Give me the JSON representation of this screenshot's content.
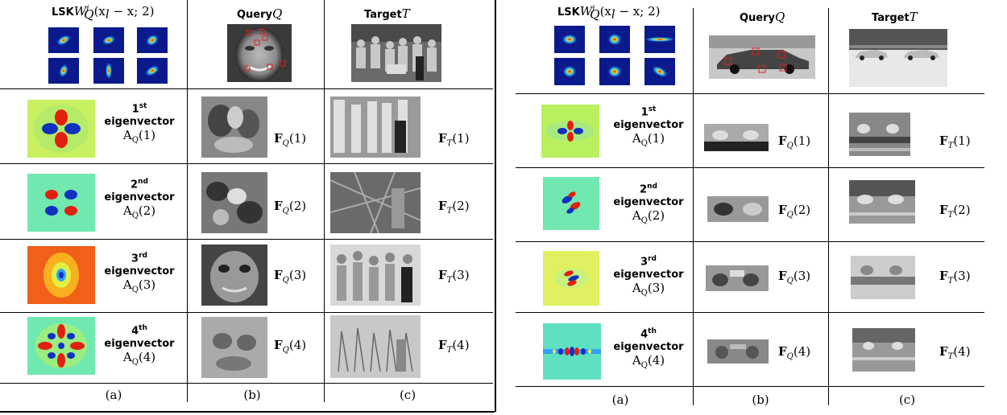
{
  "panels": [
    {
      "headers": {
        "lsk_prefix": "LSK",
        "lsk_math": "W",
        "lsk_sup": "j",
        "lsk_sub": "Q",
        "lsk_args": "(x",
        "lsk_args_sub": "l",
        "lsk_args_rest": " − x; 2)",
        "query": "Query",
        "query_sym": "Q",
        "target": "Target",
        "target_sym": "T"
      },
      "rows": [
        {
          "ord": "1",
          "ord_sup": "st",
          "word": "eigenvector",
          "a": "A",
          "a_sub": "Q",
          "a_arg": "(1)",
          "fq": "F",
          "fq_sub": "Q",
          "fq_arg": "(1)",
          "ft": "F",
          "ft_sub": "T",
          "ft_arg": "(1)"
        },
        {
          "ord": "2",
          "ord_sup": "nd",
          "word": "eigenvector",
          "a": "A",
          "a_sub": "Q",
          "a_arg": "(2)",
          "fq": "F",
          "fq_sub": "Q",
          "fq_arg": "(2)",
          "ft": "F",
          "ft_sub": "T",
          "ft_arg": "(2)"
        },
        {
          "ord": "3",
          "ord_sup": "rd",
          "word": "eigenvector",
          "a": "A",
          "a_sub": "Q",
          "a_arg": "(3)",
          "fq": "F",
          "fq_sub": "Q",
          "fq_arg": "(3)",
          "ft": "F",
          "ft_sub": "T",
          "ft_arg": "(3)"
        },
        {
          "ord": "4",
          "ord_sup": "th",
          "word": "eigenvector",
          "a": "A",
          "a_sub": "Q",
          "a_arg": "(4)",
          "fq": "F",
          "fq_sub": "Q",
          "fq_arg": "(4)",
          "ft": "F",
          "ft_sub": "T",
          "ft_arg": "(4)"
        }
      ],
      "captions": [
        "(a)",
        "(b)",
        "(c)"
      ]
    },
    {
      "headers": {
        "lsk_prefix": "LSK",
        "lsk_math": "W",
        "lsk_sup": "j",
        "lsk_sub": "Q",
        "lsk_args": "(x",
        "lsk_args_sub": "l",
        "lsk_args_rest": " − x; 2)",
        "query": "Query",
        "query_sym": "Q",
        "target": "Target",
        "target_sym": "T"
      },
      "rows": [
        {
          "ord": "1",
          "ord_sup": "st",
          "word": "eigenvector",
          "a": "A",
          "a_sub": "Q",
          "a_arg": "(1)",
          "fq": "F",
          "fq_sub": "Q",
          "fq_arg": "(1)",
          "ft": "F",
          "ft_sub": "T",
          "ft_arg": "(1)"
        },
        {
          "ord": "2",
          "ord_sup": "nd",
          "word": "eigenvector",
          "a": "A",
          "a_sub": "Q",
          "a_arg": "(2)",
          "fq": "F",
          "fq_sub": "Q",
          "fq_arg": "(2)",
          "ft": "F",
          "ft_sub": "T",
          "ft_arg": "(2)"
        },
        {
          "ord": "3",
          "ord_sup": "rd",
          "word": "eigenvector",
          "a": "A",
          "a_sub": "Q",
          "a_arg": "(3)",
          "fq": "F",
          "fq_sub": "Q",
          "fq_arg": "(3)",
          "ft": "F",
          "ft_sub": "T",
          "ft_arg": "(3)"
        },
        {
          "ord": "4",
          "ord_sup": "th",
          "word": "eigenvector",
          "a": "A",
          "a_sub": "Q",
          "a_arg": "(4)",
          "fq": "F",
          "fq_sub": "Q",
          "fq_arg": "(4)",
          "ft": "F",
          "ft_sub": "T",
          "ft_arg": "(4)"
        }
      ],
      "captions": [
        "(a)",
        "(b)",
        "(c)"
      ]
    }
  ],
  "colors": {
    "kernel_bg": "#0a1a8c",
    "eig_green": "#b8f060",
    "eig_cyan": "#5fe0c0",
    "eig_orange": "#f06018",
    "roi_red": "#e02020"
  }
}
